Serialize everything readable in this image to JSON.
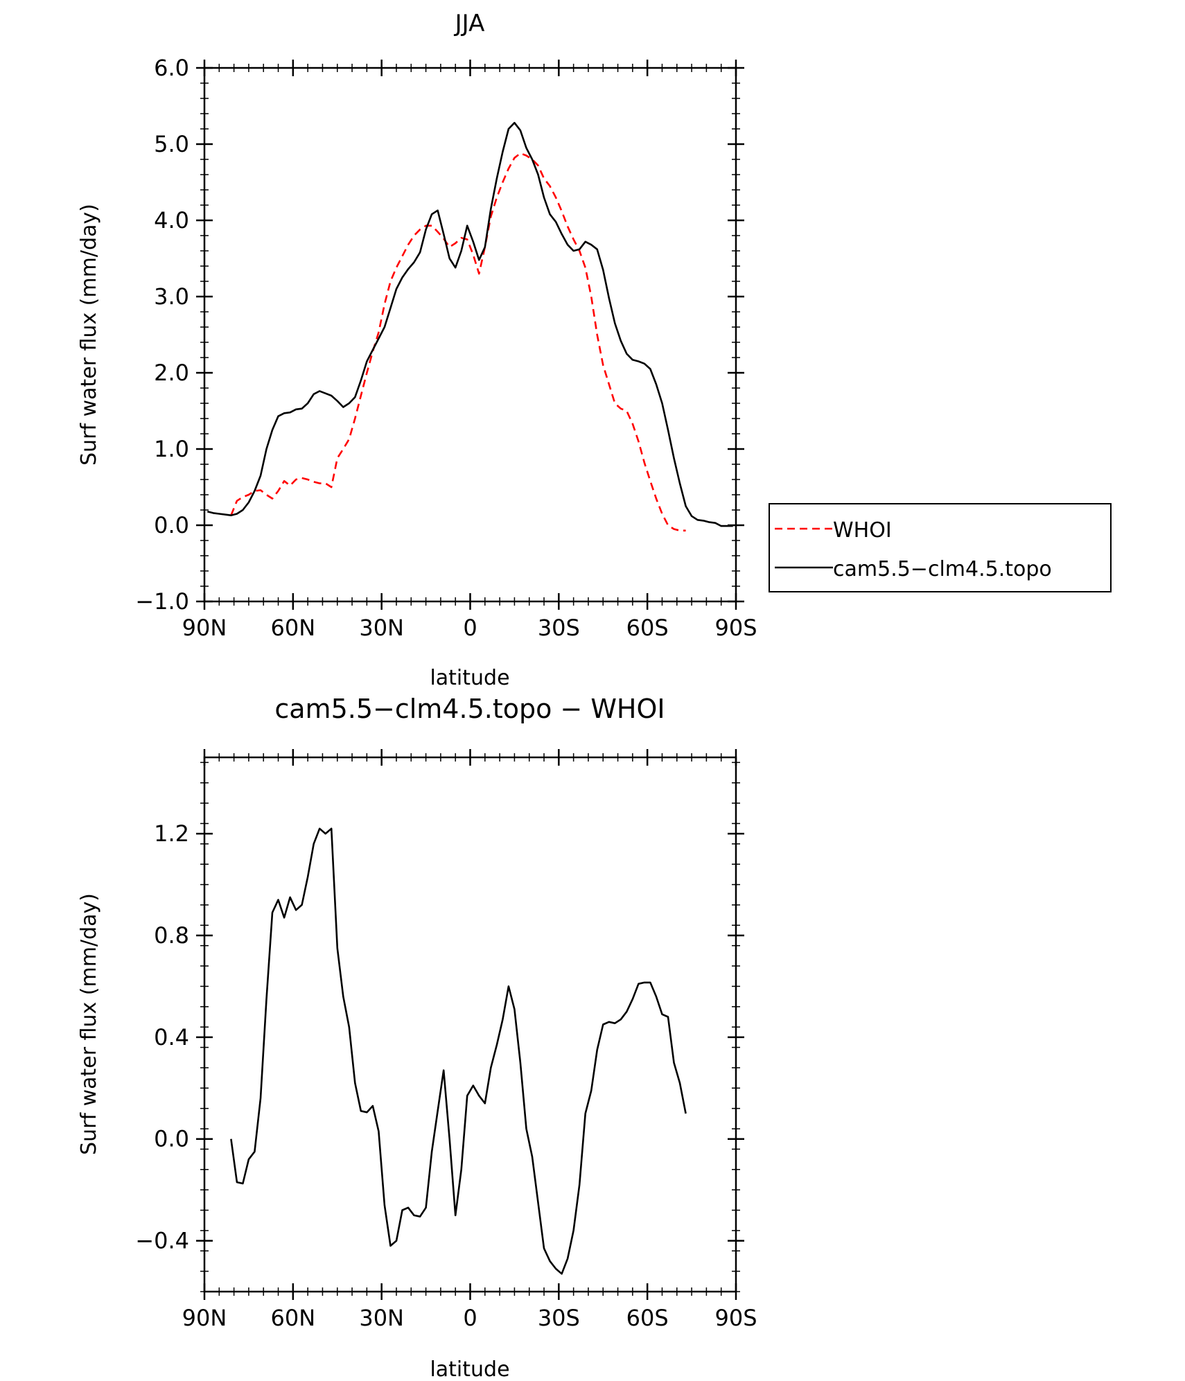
{
  "colors": {
    "whoi": "#ff0000",
    "model": "#000000",
    "axes": "#000000",
    "background": "#ffffff"
  },
  "x_tick_labels": [
    "90N",
    "60N",
    "30N",
    "0",
    "30S",
    "60S",
    "90S"
  ],
  "chart_data": [
    {
      "type": "line",
      "title": "JJA",
      "xlabel": "latitude",
      "ylabel": "Surf water flux (mm/day)",
      "xlim": [
        90,
        -90
      ],
      "ylim": [
        -1.0,
        6.0
      ],
      "y_ticks": [
        -1.0,
        0.0,
        1.0,
        2.0,
        3.0,
        4.0,
        5.0,
        6.0
      ],
      "y_tick_labels": [
        "−1.0",
        "0.0",
        "1.0",
        "2.0",
        "3.0",
        "4.0",
        "5.0",
        "6.0"
      ],
      "x_ticks": [
        90,
        60,
        30,
        0,
        -30,
        -60,
        -90
      ],
      "legend": {
        "position": "right",
        "entries": [
          "WHOI",
          "cam5.5−clm4.5.topo"
        ]
      },
      "series": [
        {
          "name": "WHOI",
          "style": "dashed",
          "color": "#ff0000",
          "x": [
            81,
            79,
            77,
            75,
            73,
            71,
            69,
            67,
            65,
            63,
            61,
            59,
            57,
            55,
            53,
            51,
            49,
            47,
            45,
            43,
            41,
            39,
            37,
            35,
            33,
            31,
            29,
            27,
            25,
            23,
            21,
            19,
            17,
            15,
            13,
            11,
            9,
            7,
            5,
            3,
            1,
            -1,
            -3,
            -5,
            -7,
            -9,
            -11,
            -13,
            -15,
            -17,
            -19,
            -21,
            -23,
            -25,
            -27,
            -29,
            -31,
            -33,
            -35,
            -37,
            -39,
            -41,
            -43,
            -45,
            -47,
            -49,
            -51,
            -53,
            -55,
            -57,
            -59,
            -61,
            -63,
            -65,
            -67,
            -69,
            -71,
            -73
          ],
          "y": [
            0.13,
            0.32,
            0.37,
            0.4,
            0.45,
            0.46,
            0.4,
            0.35,
            0.45,
            0.58,
            0.52,
            0.6,
            0.62,
            0.6,
            0.57,
            0.55,
            0.55,
            0.5,
            0.88,
            1.0,
            1.13,
            1.4,
            1.7,
            2.0,
            2.28,
            2.53,
            2.9,
            3.2,
            3.38,
            3.53,
            3.68,
            3.8,
            3.88,
            3.93,
            3.93,
            3.85,
            3.76,
            3.65,
            3.7,
            3.77,
            3.75,
            3.55,
            3.3,
            3.65,
            4.05,
            4.3,
            4.5,
            4.68,
            4.82,
            4.88,
            4.85,
            4.8,
            4.72,
            4.55,
            4.45,
            4.3,
            4.12,
            3.92,
            3.75,
            3.6,
            3.38,
            3.0,
            2.5,
            2.1,
            1.85,
            1.6,
            1.53,
            1.5,
            1.33,
            1.1,
            0.82,
            0.58,
            0.35,
            0.15,
            0.0,
            -0.05,
            -0.07,
            -0.07
          ]
        },
        {
          "name": "cam5.5−clm4.5.topo",
          "style": "solid",
          "color": "#000000",
          "x": [
            89,
            87,
            85,
            83,
            81,
            79,
            77,
            75,
            73,
            71,
            69,
            67,
            65,
            63,
            61,
            59,
            57,
            55,
            53,
            51,
            49,
            47,
            45,
            43,
            41,
            39,
            37,
            35,
            33,
            31,
            29,
            27,
            25,
            23,
            21,
            19,
            17,
            15,
            13,
            11,
            9,
            7,
            5,
            3,
            1,
            -1,
            -3,
            -5,
            -7,
            -9,
            -11,
            -13,
            -15,
            -17,
            -19,
            -21,
            -23,
            -25,
            -27,
            -29,
            -31,
            -33,
            -35,
            -37,
            -39,
            -41,
            -43,
            -45,
            -47,
            -49,
            -51,
            -53,
            -55,
            -57,
            -59,
            -61,
            -63,
            -65,
            -67,
            -69,
            -71,
            -73,
            -75,
            -77,
            -79,
            -81,
            -83,
            -85,
            -87,
            -89
          ],
          "y": [
            0.18,
            0.16,
            0.15,
            0.14,
            0.13,
            0.15,
            0.2,
            0.3,
            0.45,
            0.65,
            1.0,
            1.25,
            1.43,
            1.47,
            1.48,
            1.52,
            1.53,
            1.6,
            1.72,
            1.76,
            1.73,
            1.7,
            1.63,
            1.55,
            1.6,
            1.68,
            1.9,
            2.15,
            2.3,
            2.45,
            2.6,
            2.85,
            3.1,
            3.25,
            3.36,
            3.45,
            3.58,
            3.88,
            4.08,
            4.13,
            3.82,
            3.5,
            3.38,
            3.6,
            3.93,
            3.72,
            3.48,
            3.65,
            4.15,
            4.55,
            4.9,
            5.2,
            5.28,
            5.18,
            4.95,
            4.8,
            4.6,
            4.3,
            4.08,
            3.98,
            3.82,
            3.68,
            3.6,
            3.62,
            3.72,
            3.68,
            3.62,
            3.35,
            2.98,
            2.65,
            2.42,
            2.25,
            2.17,
            2.15,
            2.12,
            2.05,
            1.85,
            1.6,
            1.25,
            0.88,
            0.55,
            0.25,
            0.12,
            0.07,
            0.06,
            0.04,
            0.03,
            -0.01,
            -0.01,
            -0.01
          ]
        }
      ]
    },
    {
      "type": "line",
      "title": "cam5.5−clm4.5.topo − WHOI",
      "xlabel": "latitude",
      "ylabel": "Surf water flux (mm/day)",
      "xlim": [
        90,
        -90
      ],
      "ylim": [
        -0.6,
        1.5
      ],
      "y_ticks": [
        -0.4,
        0.0,
        0.4,
        0.8,
        1.2
      ],
      "y_tick_labels": [
        "−0.4",
        "0.0",
        "0.4",
        "0.8",
        "1.2"
      ],
      "x_ticks": [
        90,
        60,
        30,
        0,
        -30,
        -60,
        -90
      ],
      "series": [
        {
          "style": "solid",
          "color": "#000000",
          "x": [
            81,
            79,
            77,
            75,
            73,
            71,
            69,
            67,
            65,
            63,
            61,
            59,
            57,
            55,
            53,
            51,
            49,
            47,
            45,
            43,
            41,
            39,
            37,
            35,
            33,
            31,
            29,
            27,
            25,
            23,
            21,
            19,
            17,
            15,
            13,
            11,
            9,
            7,
            5,
            3,
            1,
            -1,
            -3,
            -5,
            -7,
            -9,
            -11,
            -13,
            -15,
            -17,
            -19,
            -21,
            -23,
            -25,
            -27,
            -29,
            -31,
            -33,
            -35,
            -37,
            -39,
            -41,
            -43,
            -45,
            -47,
            -49,
            -51,
            -53,
            -55,
            -57,
            -59,
            -61,
            -63,
            -65,
            -67,
            -69,
            -71,
            -73
          ],
          "y": [
            0.0,
            -0.17,
            -0.175,
            -0.08,
            -0.05,
            0.16,
            0.55,
            0.89,
            0.94,
            0.87,
            0.95,
            0.9,
            0.92,
            1.03,
            1.16,
            1.22,
            1.2,
            1.22,
            0.75,
            0.56,
            0.44,
            0.22,
            0.11,
            0.105,
            0.13,
            0.03,
            -0.26,
            -0.42,
            -0.4,
            -0.28,
            -0.27,
            -0.3,
            -0.305,
            -0.27,
            -0.05,
            0.11,
            0.27,
            0.0,
            -0.3,
            -0.12,
            0.17,
            0.21,
            0.17,
            0.14,
            0.28,
            0.37,
            0.47,
            0.6,
            0.51,
            0.3,
            0.04,
            -0.07,
            -0.25,
            -0.43,
            -0.48,
            -0.51,
            -0.53,
            -0.47,
            -0.36,
            -0.18,
            0.1,
            0.19,
            0.35,
            0.45,
            0.46,
            0.455,
            0.47,
            0.5,
            0.55,
            0.61,
            0.615,
            0.615,
            0.56,
            0.49,
            0.48,
            0.3,
            0.22,
            0.1
          ]
        }
      ]
    }
  ]
}
